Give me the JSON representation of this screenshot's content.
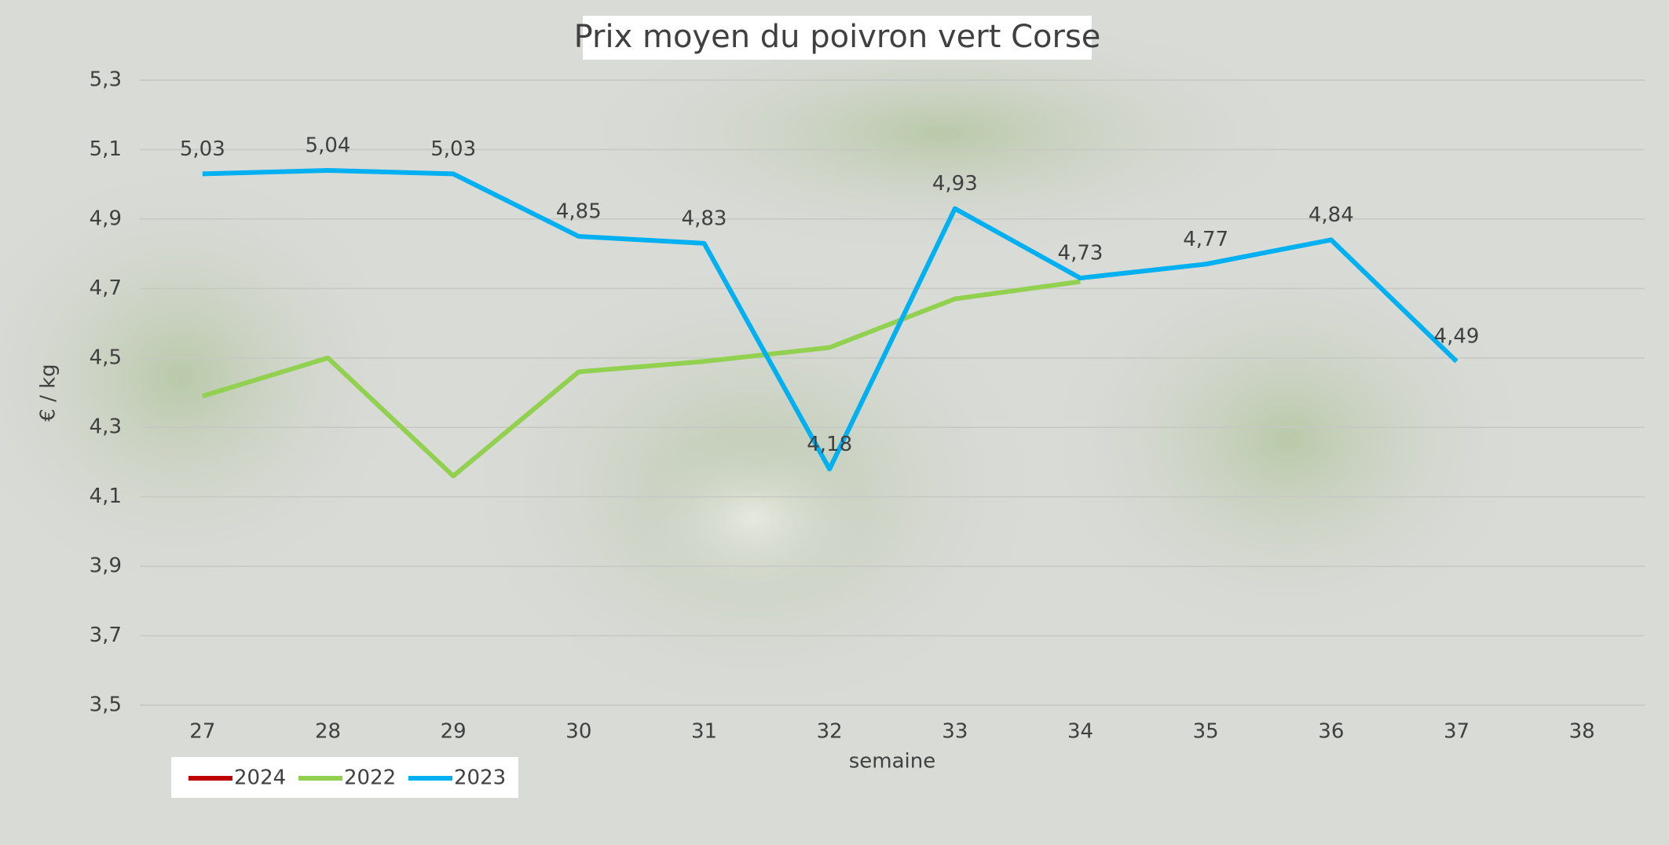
{
  "chart_data": {
    "type": "line",
    "title": "Prix moyen du poivron vert Corse",
    "x_label": "semaine",
    "y_label": "€ / kg",
    "categories": [
      "27",
      "28",
      "29",
      "30",
      "31",
      "32",
      "33",
      "34",
      "35",
      "36",
      "37",
      "38"
    ],
    "series": [
      {
        "name": "2024",
        "color": "#c00000",
        "values": [
          null,
          null,
          null,
          null,
          null,
          null,
          null,
          null,
          null,
          null,
          null,
          null
        ]
      },
      {
        "name": "2022",
        "color": "#92d050",
        "values": [
          4.39,
          4.5,
          4.16,
          4.46,
          4.49,
          4.53,
          4.67,
          4.72,
          null,
          null,
          null,
          null
        ]
      },
      {
        "name": "2023",
        "color": "#00b0f0",
        "values": [
          5.03,
          5.04,
          5.03,
          4.85,
          4.83,
          4.18,
          4.93,
          4.73,
          4.77,
          4.84,
          4.49,
          null
        ],
        "value_labels": [
          "5,03",
          "5,04",
          "5,03",
          "4,85",
          "4,83",
          "4,18",
          "4,93",
          "4,73",
          "4,77",
          "4,84",
          "4,49",
          null
        ]
      }
    ],
    "ylim": [
      3.5,
      5.3
    ],
    "yticks": [
      {
        "value": 3.5,
        "label": "3,5"
      },
      {
        "value": 3.7,
        "label": "3,7"
      },
      {
        "value": 3.9,
        "label": "3,9"
      },
      {
        "value": 4.1,
        "label": "4,1"
      },
      {
        "value": 4.3,
        "label": "4,3"
      },
      {
        "value": 4.5,
        "label": "4,5"
      },
      {
        "value": 4.7,
        "label": "4,7"
      },
      {
        "value": 4.9,
        "label": "4,9"
      },
      {
        "value": 5.1,
        "label": "5,1"
      },
      {
        "value": 5.3,
        "label": "5,3"
      }
    ],
    "grid": true,
    "legend": "bottom-left"
  }
}
